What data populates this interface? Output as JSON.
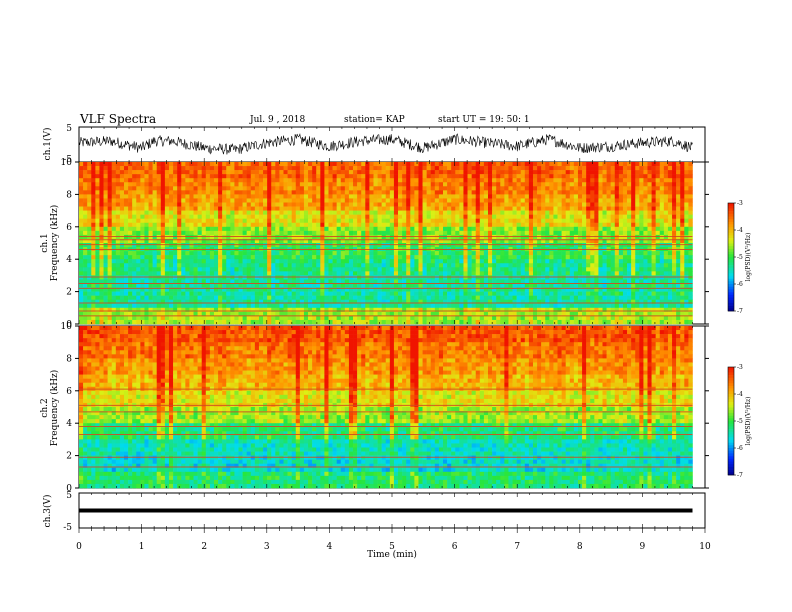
{
  "header": {
    "title": "VLF Spectra",
    "date": "Jul. 9 , 2018",
    "station": "station= KAP",
    "start": "start UT = 19: 50: 1"
  },
  "colors": {
    "spectrogram_low": "#0a1cc8",
    "spectrogram_mid": "#20d840",
    "spectrogram_high": "#ff2000",
    "trace": "#000000"
  },
  "chart_data": [
    {
      "type": "line",
      "panel": "ch1-waveform",
      "ylabel": "ch.1(V)",
      "ylim": [
        -5,
        5
      ],
      "yticks": [
        "5",
        "-5"
      ],
      "xlim": [
        0,
        10
      ],
      "x": [
        0,
        0.5,
        1,
        1.2,
        1.5,
        2,
        2.5,
        3,
        3.5,
        4,
        4.5,
        5,
        5.5,
        6,
        6.5,
        7,
        7.5,
        8,
        8.5,
        9,
        9.5,
        9.8
      ],
      "y": [
        0.5,
        1.0,
        -1.0,
        1.0,
        1.0,
        -1.0,
        -1.5,
        0.5,
        1.5,
        -0.5,
        1.0,
        1.5,
        -1.0,
        1.5,
        0.5,
        -0.5,
        1.5,
        -1.0,
        -0.5,
        0.5,
        1.0,
        -1.0
      ]
    },
    {
      "type": "heatmap",
      "panel": "ch1-spectrogram",
      "ylabel_top": "ch.1",
      "ylabel": "Frequency (kHz)",
      "ylim": [
        0,
        10
      ],
      "yticks": [
        "0",
        "2",
        "4",
        "6",
        "8",
        "10"
      ],
      "xlim": [
        0,
        9.8
      ],
      "band_power_log": [
        {
          "f": 9.5,
          "v": -3.5
        },
        {
          "f": 8.5,
          "v": -3.7
        },
        {
          "f": 7.5,
          "v": -3.9
        },
        {
          "f": 6.5,
          "v": -4.3
        },
        {
          "f": 5.5,
          "v": -4.7
        },
        {
          "f": 4.5,
          "v": -5.1
        },
        {
          "f": 3.5,
          "v": -5.3
        },
        {
          "f": 2.5,
          "v": -5.4
        },
        {
          "f": 1.5,
          "v": -5.4
        },
        {
          "f": 0.5,
          "v": -4.6
        }
      ],
      "lines_khz": [
        5.4,
        5.2,
        4.9,
        4.6,
        2.9,
        2.5,
        2.2,
        1.3,
        0.8,
        0.5
      ],
      "colorbar": {
        "label": "log(PSD)(V²/Hz)",
        "ticks": [
          "-3",
          "-4",
          "-5",
          "-6",
          "-7"
        ],
        "range": [
          -7,
          -3
        ]
      }
    },
    {
      "type": "heatmap",
      "panel": "ch2-spectrogram",
      "ylabel_top": "ch.2",
      "ylabel": "Frequency (kHz)",
      "ylim": [
        0,
        10
      ],
      "yticks": [
        "0",
        "2",
        "4",
        "6",
        "8",
        "10"
      ],
      "xlim": [
        0,
        9.8
      ],
      "band_power_log": [
        {
          "f": 9.5,
          "v": -3.4
        },
        {
          "f": 8.5,
          "v": -3.6
        },
        {
          "f": 7.5,
          "v": -3.8
        },
        {
          "f": 6.5,
          "v": -4.0
        },
        {
          "f": 5.5,
          "v": -4.3
        },
        {
          "f": 4.5,
          "v": -4.6
        },
        {
          "f": 3.5,
          "v": -5.2
        },
        {
          "f": 2.5,
          "v": -5.5
        },
        {
          "f": 1.5,
          "v": -5.6
        },
        {
          "f": 0.5,
          "v": -5.2
        }
      ],
      "lines_khz": [
        6.1,
        5.1,
        4.7,
        3.8,
        3.3,
        1.9,
        1.3
      ],
      "colorbar": {
        "label": "log(PSD)(V²/Hz)",
        "ticks": [
          "-3",
          "-4",
          "-5",
          "-6",
          "-7"
        ],
        "range": [
          -7,
          -3
        ]
      }
    },
    {
      "type": "line",
      "panel": "ch3-waveform",
      "ylabel": "ch.3(V)",
      "ylim": [
        -5,
        5
      ],
      "yticks": [
        "5",
        "-5"
      ],
      "xlim": [
        0,
        10
      ],
      "x": [
        0,
        9.8
      ],
      "y": [
        0,
        0
      ]
    }
  ],
  "x_axis": {
    "xlabel": "Time (min)",
    "xlim": [
      0,
      10
    ],
    "ticks": [
      "0",
      "1",
      "2",
      "3",
      "4",
      "5",
      "6",
      "7",
      "8",
      "9",
      "10"
    ]
  }
}
